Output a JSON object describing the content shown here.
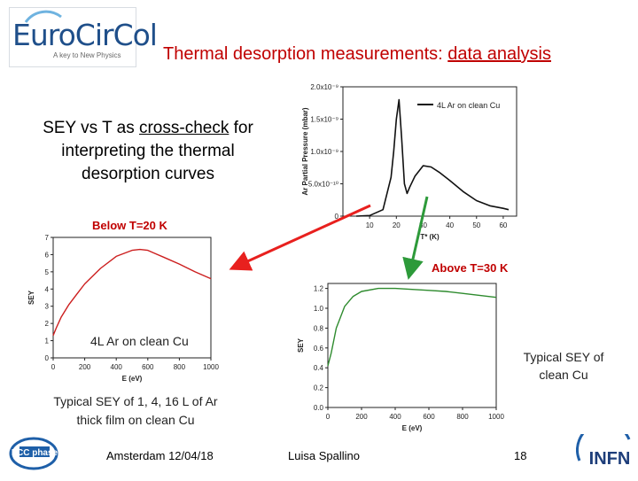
{
  "logo": {
    "text": "EuroCirCol",
    "tagline": "A key to New Physics"
  },
  "title": {
    "part1": "Thermal desorption measurements: ",
    "part2": "data analysis"
  },
  "intro": {
    "l1a": "SEY vs T as ",
    "l1b": "cross-check",
    "l1c": " for",
    "l2": "interpreting the thermal",
    "l3": "desorption curves"
  },
  "labels": {
    "below": "Below T=20 K",
    "above": "Above T=30 K",
    "film_note": "4L Ar on clean Cu",
    "typical_cu": [
      "Typical SEY of",
      "clean Cu"
    ],
    "typical_ar": [
      "Typical SEY of 1, 4, 16 L of Ar",
      "thick film on clean Cu"
    ]
  },
  "footer": {
    "place_date": "Amsterdam 12/04/18",
    "author": "Luisa Spallino",
    "page": "18"
  },
  "brand_logos": {
    "left": "FCC phase",
    "right": "INFN"
  },
  "colors": {
    "title": "#c00000",
    "arrow_red": "#e8201e",
    "arrow_green": "#2d9a3a",
    "sey_curve": "#cc1e1e",
    "cu_curve": "#2e8b2e"
  },
  "chart_data": [
    {
      "type": "line",
      "xlabel": "T* (K)",
      "ylabel": "Ar Partial Pressure (mbar)",
      "xlim": [
        0,
        65
      ],
      "ylim": [
        0,
        2e-09
      ],
      "xticks": [
        "10",
        "20",
        "30",
        "40",
        "50",
        "60"
      ],
      "yticks": [
        "0",
        "5.0x10⁻¹⁰",
        "1.0x10⁻⁹",
        "1.5x10⁻⁹",
        "2.0x10⁻⁹"
      ],
      "series": [
        {
          "name": "4L Ar on clean Cu",
          "x": [
            5,
            10,
            15,
            18,
            19,
            20,
            21,
            22,
            23,
            24,
            25,
            27,
            30,
            33,
            36,
            40,
            45,
            50,
            55,
            60,
            62
          ],
          "y": [
            0.0,
            1e-11,
            1e-10,
            6e-10,
            1e-09,
            1.5e-09,
            1.8e-09,
            1.2e-09,
            5e-10,
            3.5e-10,
            4.5e-10,
            6.2e-10,
            7.8e-10,
            7.6e-10,
            6.8e-10,
            5.5e-10,
            3.8e-10,
            2.4e-10,
            1.6e-10,
            1.2e-10,
            1e-10
          ]
        }
      ]
    },
    {
      "type": "line",
      "xlabel": "E (eV)",
      "ylabel": "SEY",
      "xlim": [
        0,
        1000
      ],
      "ylim": [
        0,
        7
      ],
      "xticks": [
        "0",
        "200",
        "400",
        "600",
        "800",
        "1000"
      ],
      "yticks": [
        "0",
        "1",
        "2",
        "3",
        "4",
        "5",
        "6",
        "7"
      ],
      "series": [
        {
          "x": [
            0,
            20,
            50,
            100,
            150,
            200,
            300,
            400,
            500,
            550,
            600,
            650,
            700,
            800,
            900,
            1000
          ],
          "y": [
            1.3,
            1.75,
            2.35,
            3.1,
            3.7,
            4.3,
            5.2,
            5.9,
            6.25,
            6.3,
            6.25,
            6.05,
            5.85,
            5.45,
            5.0,
            4.6
          ]
        }
      ]
    },
    {
      "type": "line",
      "xlabel": "E (eV)",
      "ylabel": "SEY",
      "xlim": [
        0,
        1000
      ],
      "ylim": [
        0,
        1.25
      ],
      "xticks": [
        "0",
        "200",
        "400",
        "600",
        "800",
        "1000"
      ],
      "yticks": [
        "0.0",
        "0.2",
        "0.4",
        "0.6",
        "0.8",
        "1.0",
        "1.2"
      ],
      "series": [
        {
          "x": [
            0,
            20,
            50,
            100,
            150,
            200,
            300,
            400,
            500,
            600,
            700,
            800,
            900,
            1000
          ],
          "y": [
            0.42,
            0.55,
            0.8,
            1.02,
            1.12,
            1.17,
            1.2,
            1.2,
            1.19,
            1.18,
            1.17,
            1.15,
            1.13,
            1.11
          ]
        }
      ]
    }
  ]
}
